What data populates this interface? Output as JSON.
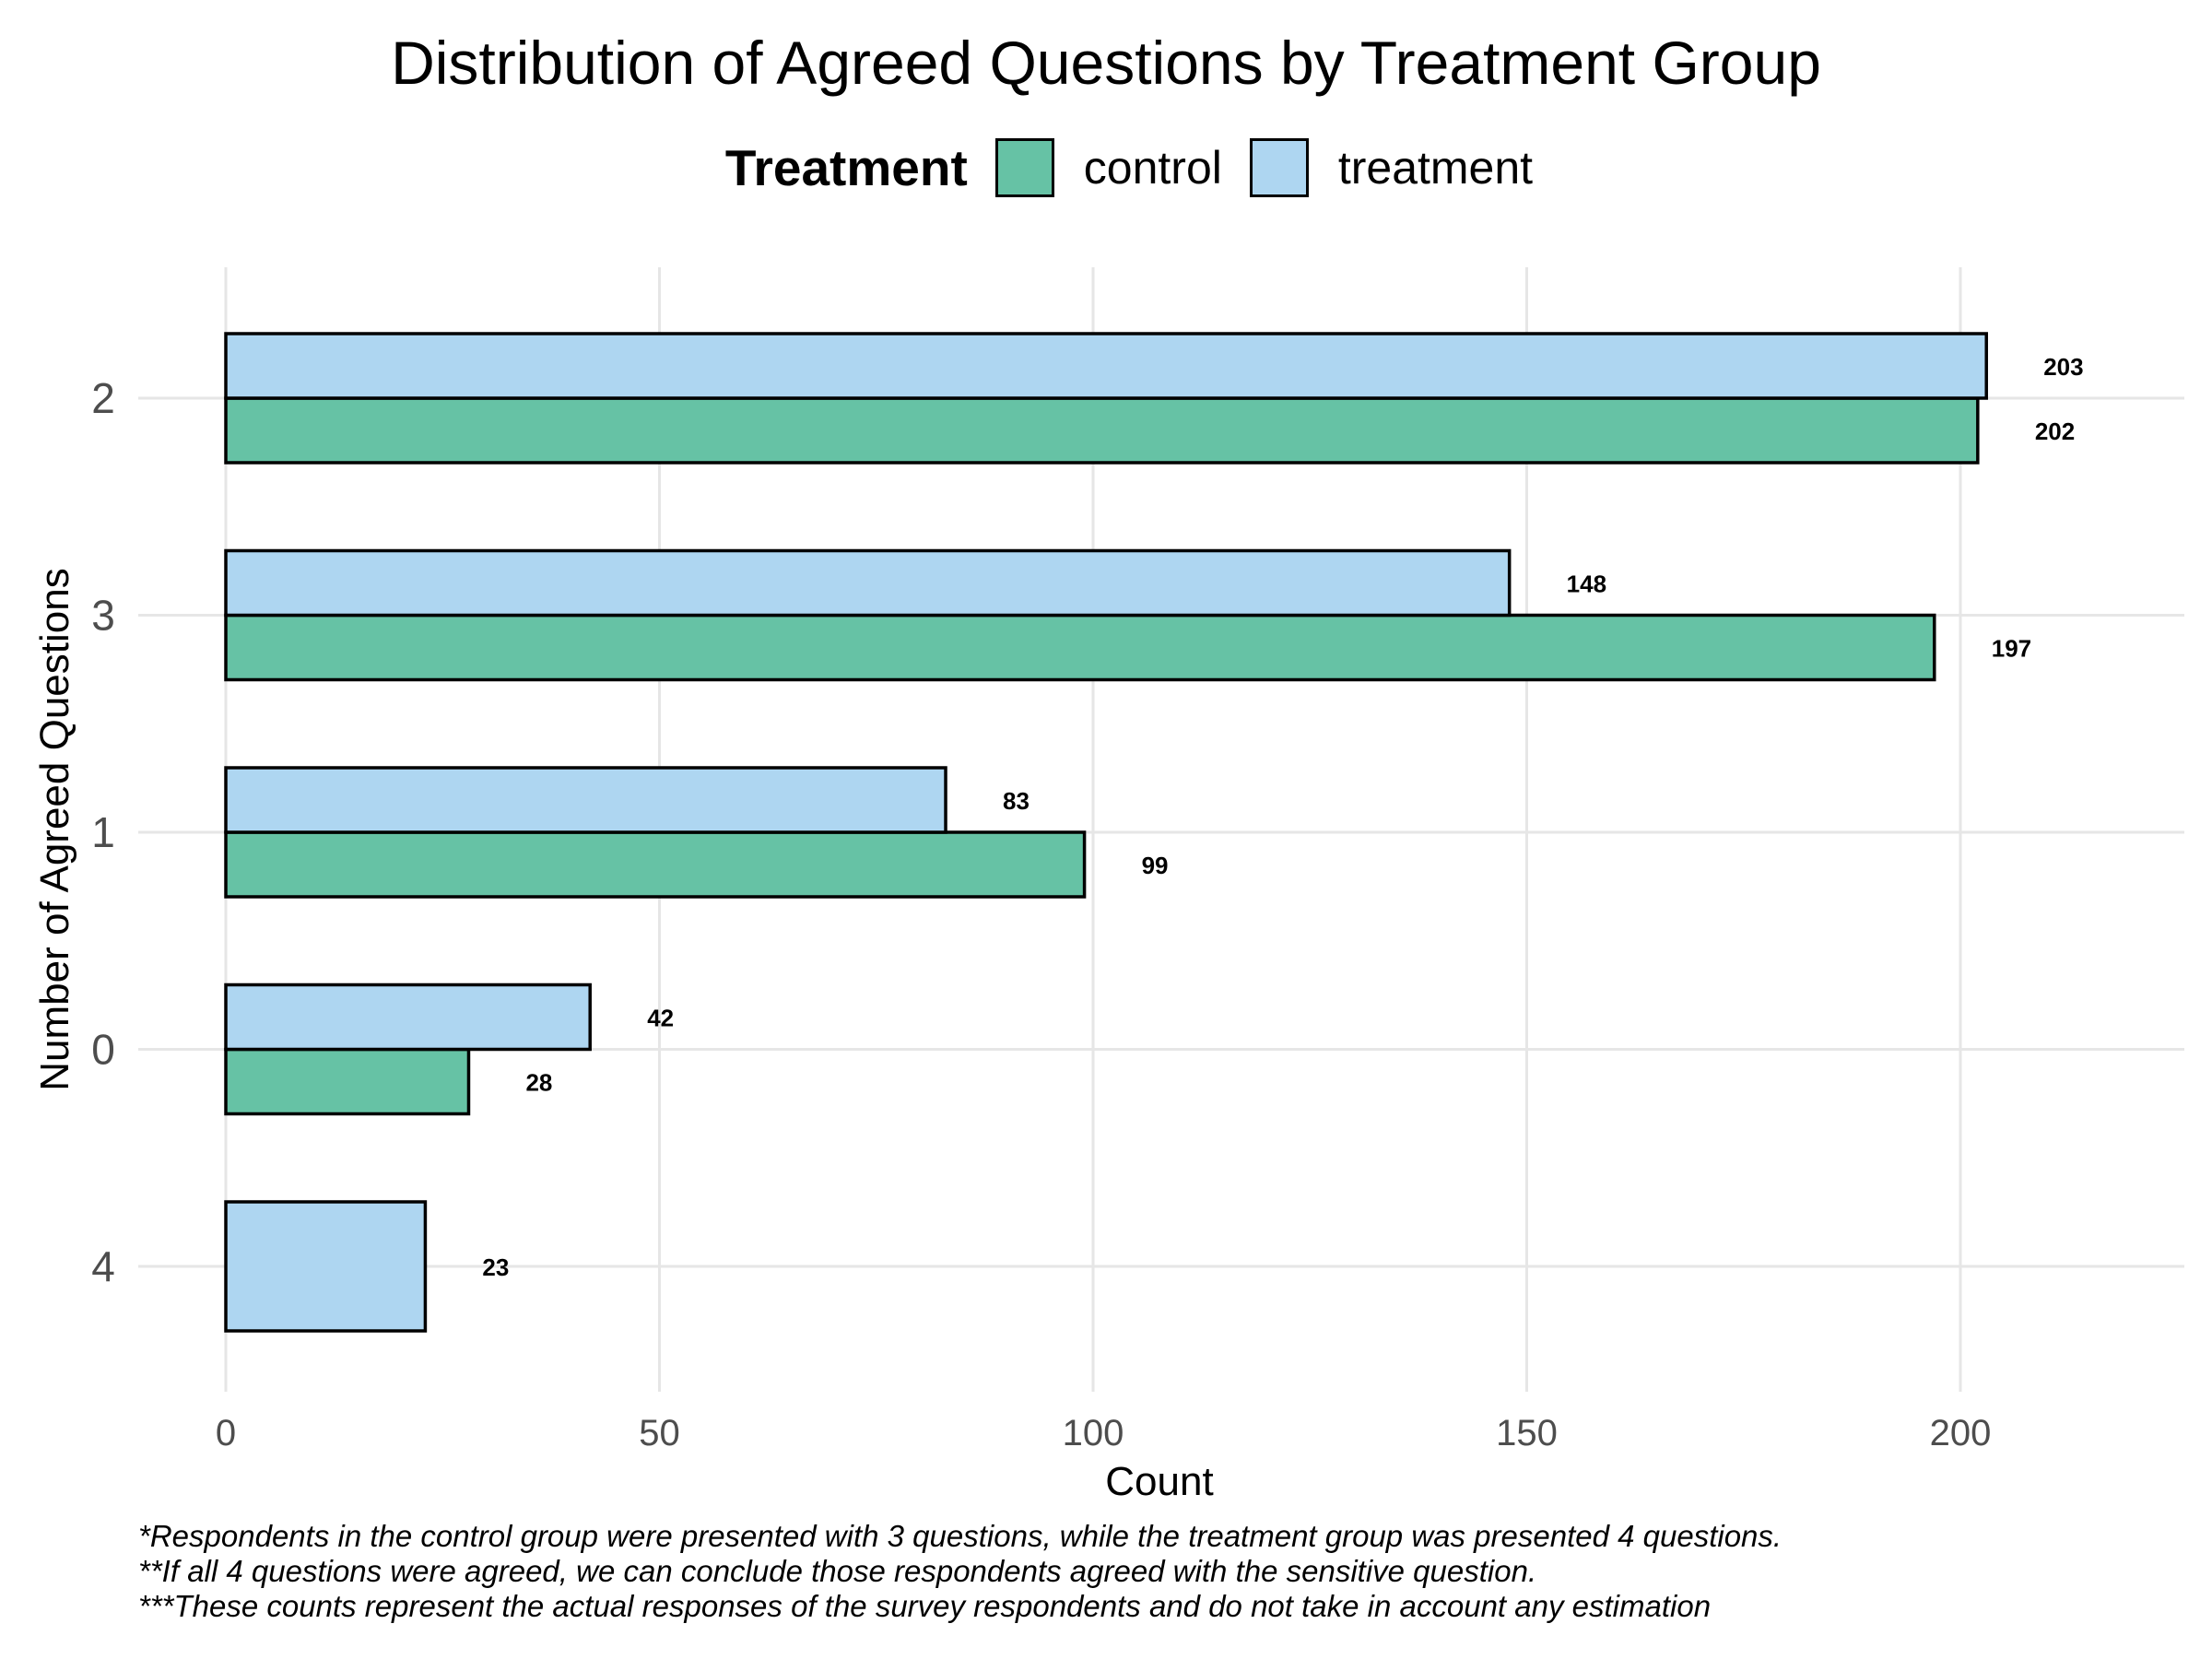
{
  "chart_data": {
    "type": "bar",
    "orientation": "horizontal",
    "title": "Distribution of Agreed Questions by Treatment Group",
    "xlabel": "Count",
    "ylabel": "Number of Agreed Questions",
    "categories": [
      "2",
      "3",
      "1",
      "0",
      "4"
    ],
    "series": [
      {
        "name": "control",
        "color": "#66c2a5",
        "values": [
          202,
          197,
          99,
          28,
          null
        ]
      },
      {
        "name": "treatment",
        "color": "#aed6f1",
        "values": [
          203,
          148,
          83,
          42,
          23
        ]
      }
    ],
    "xticks": [
      "0",
      "50",
      "100",
      "150",
      "200"
    ],
    "xlim": [
      0,
      225
    ],
    "grid": true,
    "legend": {
      "title": "Treatment",
      "position": "top"
    },
    "footnotes": [
      "*Respondents in the control group were presented with 3 questions, while the treatment group was presented 4 questions.",
      "**If all 4 questions were agreed, we can conclude those respondents agreed with the sensitive question.",
      "***These counts represent the actual responses of the survey respondents and do not take in account any estimation"
    ]
  }
}
